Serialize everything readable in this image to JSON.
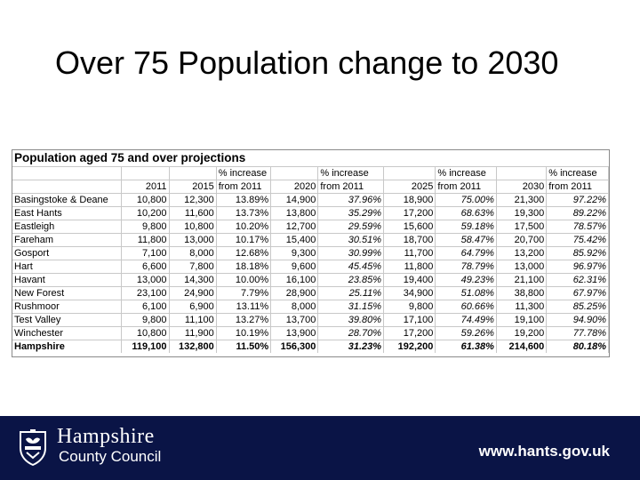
{
  "slide": {
    "title": "Over 75 Population change to 2030"
  },
  "table": {
    "caption": "Population aged 75 and over projections",
    "header_pct": "% increase",
    "header_years": [
      "2011",
      "2015",
      "from 2011",
      "2020",
      "from 2011",
      "2025",
      "from 2011",
      "2030",
      "from 2011"
    ],
    "rows": [
      [
        "Basingstoke & Deane",
        "10,800",
        "12,300",
        "13.89%",
        "14,900",
        "37.96%",
        "18,900",
        "75.00%",
        "21,300",
        "97.22%"
      ],
      [
        "East Hants",
        "10,200",
        "11,600",
        "13.73%",
        "13,800",
        "35.29%",
        "17,200",
        "68.63%",
        "19,300",
        "89.22%"
      ],
      [
        "Eastleigh",
        "9,800",
        "10,800",
        "10.20%",
        "12,700",
        "29.59%",
        "15,600",
        "59.18%",
        "17,500",
        "78.57%"
      ],
      [
        "Fareham",
        "11,800",
        "13,000",
        "10.17%",
        "15,400",
        "30.51%",
        "18,700",
        "58.47%",
        "20,700",
        "75.42%"
      ],
      [
        "Gosport",
        "7,100",
        "8,000",
        "12.68%",
        "9,300",
        "30.99%",
        "11,700",
        "64.79%",
        "13,200",
        "85.92%"
      ],
      [
        "Hart",
        "6,600",
        "7,800",
        "18.18%",
        "9,600",
        "45.45%",
        "11,800",
        "78.79%",
        "13,000",
        "96.97%"
      ],
      [
        "Havant",
        "13,000",
        "14,300",
        "10.00%",
        "16,100",
        "23.85%",
        "19,400",
        "49.23%",
        "21,100",
        "62.31%"
      ],
      [
        "New Forest",
        "23,100",
        "24,900",
        "7.79%",
        "28,900",
        "25.11%",
        "34,900",
        "51.08%",
        "38,800",
        "67.97%"
      ],
      [
        "Rushmoor",
        "6,100",
        "6,900",
        "13.11%",
        "8,000",
        "31.15%",
        "9,800",
        "60.66%",
        "11,300",
        "85.25%"
      ],
      [
        "Test Valley",
        "9,800",
        "11,100",
        "13.27%",
        "13,700",
        "39.80%",
        "17,100",
        "74.49%",
        "19,100",
        "94.90%"
      ],
      [
        "Winchester",
        "10,800",
        "11,900",
        "10.19%",
        "13,900",
        "28.70%",
        "17,200",
        "59.26%",
        "19,200",
        "77.78%"
      ]
    ],
    "total": [
      "Hampshire",
      "119,100",
      "132,800",
      "11.50%",
      "156,300",
      "31.23%",
      "192,200",
      "61.38%",
      "214,600",
      "80.18%"
    ]
  },
  "footer": {
    "brand_line1": "Hampshire",
    "brand_line2": "County Council",
    "url": "www.hants.gov.uk",
    "background_color": "#0a1446",
    "crest_icon": "hampshire-crest-icon"
  }
}
